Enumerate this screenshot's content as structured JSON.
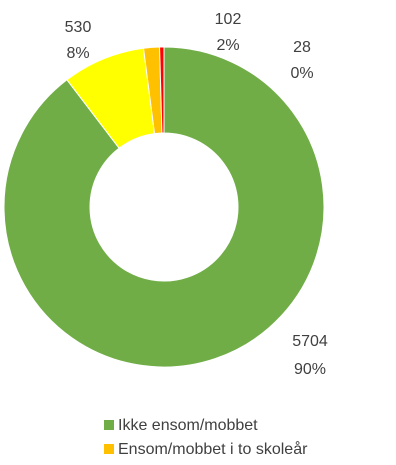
{
  "chart_data": {
    "type": "pie",
    "donut": true,
    "slices": [
      {
        "label": "Ikke ensom/mobbet",
        "value": 5704,
        "percent_label": "90%",
        "color": "#70ad47"
      },
      {
        "label": "",
        "value": 530,
        "percent_label": "8%",
        "color": "#ffff00"
      },
      {
        "label": "Ensom/mobbet i to skoleår",
        "value": 102,
        "percent_label": "2%",
        "color": "#ffc000"
      },
      {
        "label": "",
        "value": 28,
        "percent_label": "0%",
        "color": "#ff0000"
      }
    ],
    "legend": {
      "placement": "bottom",
      "entries": [
        {
          "label": "Ikke ensom/mobbet",
          "color": "#70ad47"
        },
        {
          "label": "Ensom/mobbet i to skoleår",
          "color": "#ffc000"
        }
      ]
    }
  }
}
